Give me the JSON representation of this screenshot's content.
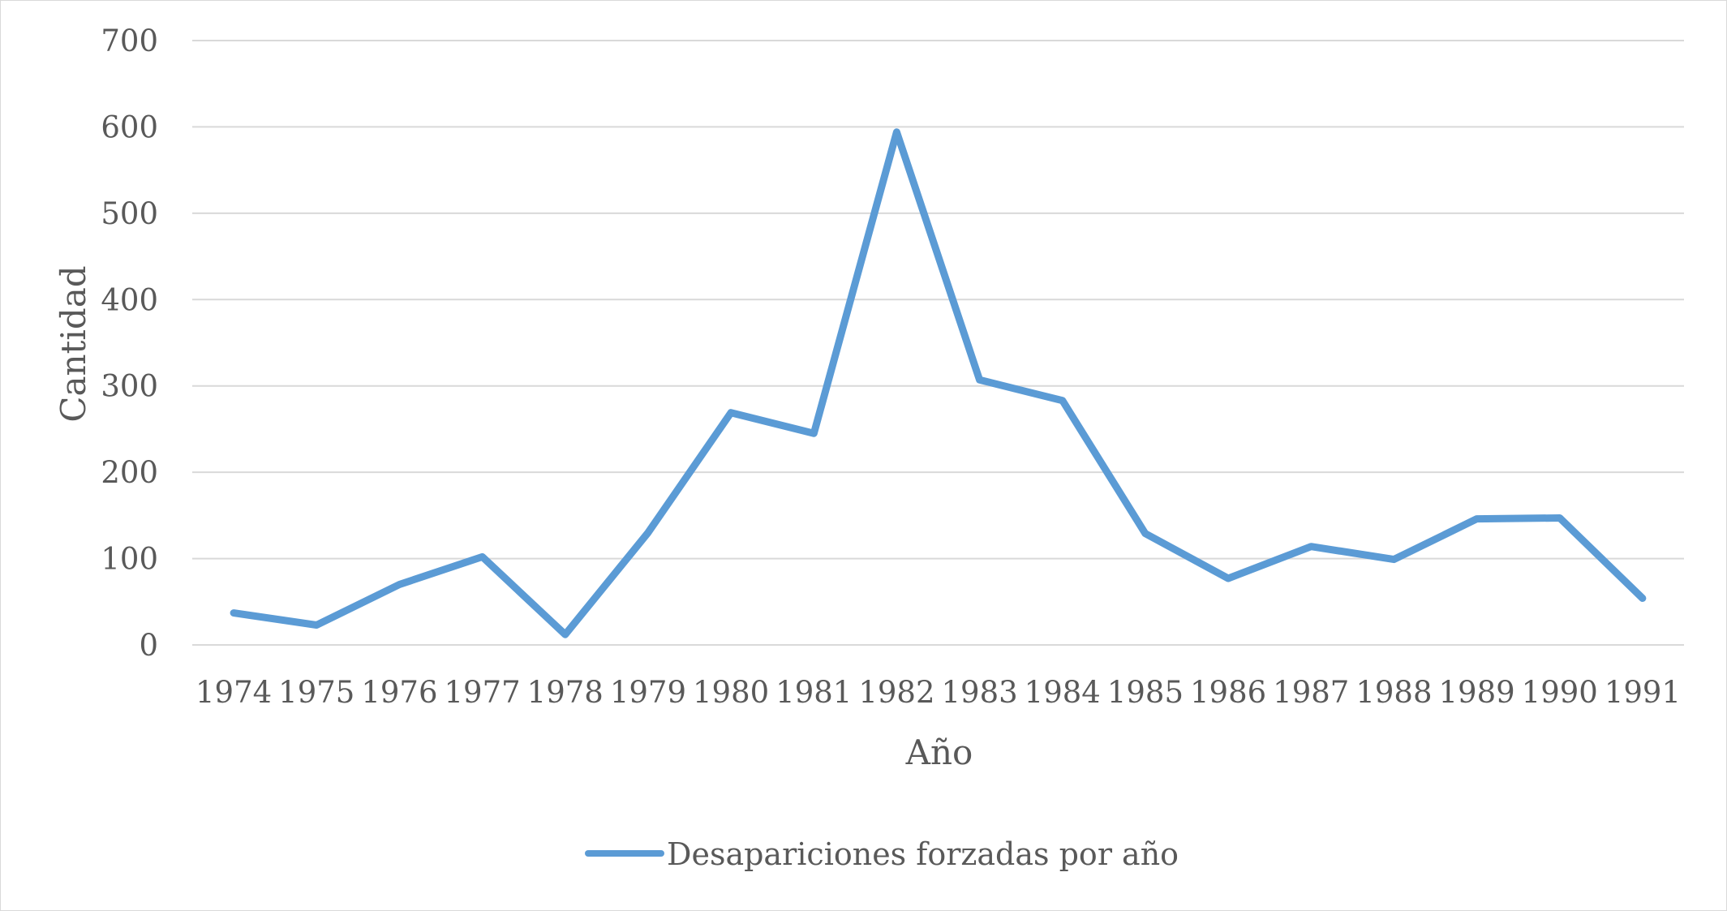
{
  "chart_data": {
    "type": "line",
    "title": "",
    "xlabel": "Año",
    "ylabel": "Cantidad",
    "ylim": [
      0,
      700
    ],
    "yticks": [
      0,
      100,
      200,
      300,
      400,
      500,
      600,
      700
    ],
    "grid": true,
    "legend_position": "bottom",
    "categories": [
      "1974",
      "1975",
      "1976",
      "1977",
      "1978",
      "1979",
      "1980",
      "1981",
      "1982",
      "1983",
      "1984",
      "1985",
      "1986",
      "1987",
      "1988",
      "1989",
      "1990",
      "1991"
    ],
    "series": [
      {
        "name": "Desapariciones forzadas por año",
        "color": "#5b9bd5",
        "values": [
          37,
          23,
          70,
          102,
          12,
          130,
          269,
          245,
          594,
          307,
          283,
          129,
          77,
          114,
          99,
          146,
          147,
          54
        ]
      }
    ]
  }
}
